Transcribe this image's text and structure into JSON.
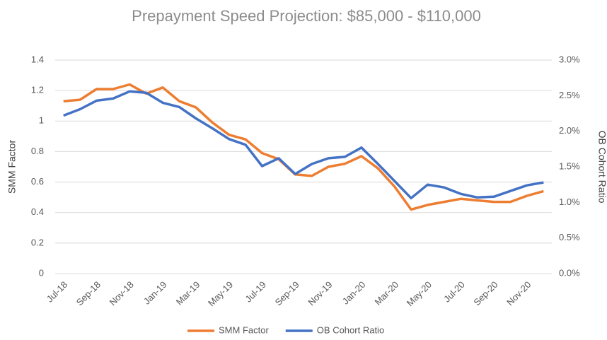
{
  "chart_data": {
    "type": "line",
    "title": "Prepayment Speed Projection: $85,000 - $110,000",
    "y_label": "SMM Factor",
    "y2_label": "OB Cohort Ratio",
    "categories": [
      "Jul-18",
      null,
      "Sep-18",
      null,
      "Nov-18",
      null,
      "Jan-19",
      null,
      "Mar-19",
      null,
      "May-19",
      null,
      "Jul-19",
      null,
      "Sep-19",
      null,
      "Nov-19",
      null,
      "Jan-20",
      null,
      "Mar-20",
      null,
      "May-20",
      null,
      "Jul-20",
      null,
      "Sep-20",
      null,
      "Nov-20",
      null
    ],
    "series": [
      {
        "name": "SMM Factor",
        "color": "#ed7d31",
        "values": [
          1.13,
          1.14,
          1.21,
          1.21,
          1.24,
          1.18,
          1.22,
          1.13,
          1.09,
          0.99,
          0.91,
          0.88,
          0.79,
          0.75,
          0.65,
          0.64,
          0.7,
          0.72,
          0.77,
          0.69,
          0.57,
          0.42,
          0.45,
          0.47,
          0.49,
          0.48,
          0.47,
          0.47,
          0.51,
          0.54
        ]
      },
      {
        "name": "OB Cohort Ratio",
        "color": "#4472c4",
        "axis": "y2",
        "values": [
          2.22,
          2.31,
          2.43,
          2.46,
          2.56,
          2.54,
          2.4,
          2.34,
          2.18,
          2.04,
          1.89,
          1.81,
          1.51,
          1.62,
          1.4,
          1.54,
          1.62,
          1.64,
          1.77,
          1.54,
          1.3,
          1.06,
          1.25,
          1.21,
          1.12,
          1.07,
          1.08,
          1.16,
          1.24,
          1.28
        ]
      }
    ],
    "ylim": [
      0,
      1.4
    ],
    "yticks": [
      0,
      0.2,
      0.4,
      0.6,
      0.8,
      1,
      1.2,
      1.4
    ],
    "y2lim": [
      0,
      3
    ],
    "y2ticks": [
      {
        "value": 0,
        "label": "0.0%"
      },
      {
        "value": 0.5,
        "label": "0.5%"
      },
      {
        "value": 1,
        "label": "1.0%"
      },
      {
        "value": 1.5,
        "label": "1.5%"
      },
      {
        "value": 2,
        "label": "2.0%"
      },
      {
        "value": 2.5,
        "label": "2.5%"
      },
      {
        "value": 3,
        "label": "3.0%"
      }
    ],
    "grid": true,
    "legend": "bottom"
  }
}
